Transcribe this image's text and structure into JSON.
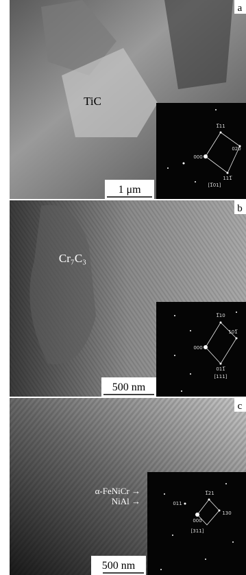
{
  "panels": [
    {
      "label": "a",
      "annotation": "TiC",
      "scale_bar": "1 μm",
      "inset": {
        "spots": [
          "1̅11",
          "020",
          "000",
          "111̅"
        ],
        "zone_axis": "[1̅01]"
      }
    },
    {
      "label": "b",
      "annotation": "Cr₇C₃",
      "scale_bar": "500 nm",
      "inset": {
        "spots": [
          "1̅10",
          "101̅",
          "000",
          "011̅"
        ],
        "zone_axis": "[111]"
      }
    },
    {
      "label": "c",
      "annotations": [
        "α-FeNiCr →",
        "NiAl →"
      ],
      "scale_bar": "500 nm",
      "inset": {
        "spots": [
          "1̅21",
          "011",
          "130",
          "000"
        ],
        "zone_axis": "[311]"
      }
    }
  ]
}
